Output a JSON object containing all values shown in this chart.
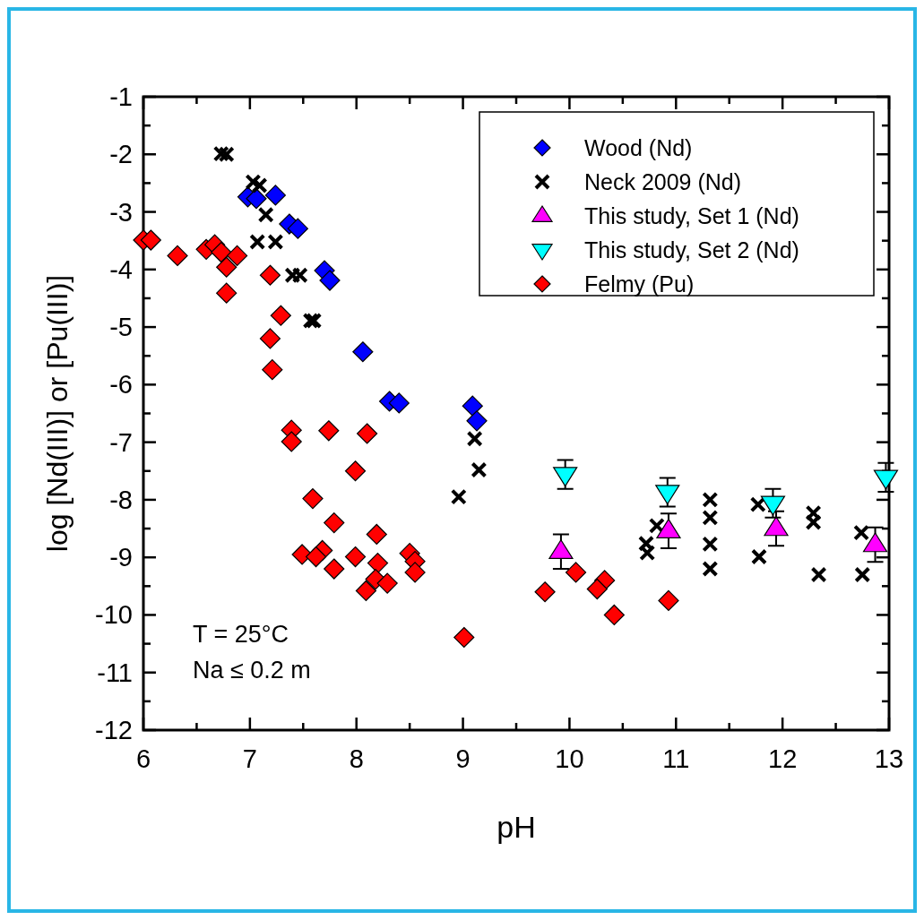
{
  "chart_data": {
    "type": "scatter",
    "xlabel": "pH",
    "ylabel": "log [Nd(III)] or [Pu(III)]",
    "xlim": [
      6,
      13
    ],
    "ylim": [
      -12,
      -1
    ],
    "xticks": [
      6,
      {
        "value": 6.5,
        "label": null
      },
      7,
      {
        "value": 7.5,
        "label": null
      },
      8,
      {
        "value": 8.5,
        "label": null
      },
      9,
      {
        "value": 9.5,
        "label": null
      },
      10,
      {
        "value": 10.5,
        "label": null
      },
      11,
      {
        "value": 11.5,
        "label": null
      },
      12,
      {
        "value": 12.5,
        "label": null
      },
      13
    ],
    "yticks": [
      -12,
      {
        "value": -11.5,
        "label": null
      },
      -11,
      {
        "value": -10.5,
        "label": null
      },
      -10,
      {
        "value": -9.5,
        "label": null
      },
      -9,
      {
        "value": -8.5,
        "label": null
      },
      -8,
      {
        "value": -7.5,
        "label": null
      },
      -7,
      {
        "value": -6.5,
        "label": null
      },
      -6,
      {
        "value": -5.5,
        "label": null
      },
      -5,
      {
        "value": -4.5,
        "label": null
      },
      -4,
      {
        "value": -3.5,
        "label": null
      },
      -3,
      {
        "value": -2.5,
        "label": null
      },
      -2,
      {
        "value": -1.5,
        "label": null
      },
      -1
    ],
    "grid": false,
    "legend": "top right",
    "annotations": [
      "T = 25°C",
      "Na ≤ 0.2 m"
    ],
    "series": [
      {
        "name": "Wood (Nd)",
        "color": "#0000ff",
        "marker": "diamond",
        "x": [
          6.98,
          7.06,
          7.24,
          7.37,
          7.45,
          7.7,
          7.75,
          8.06,
          8.31,
          8.4,
          9.09,
          9.13
        ],
        "values": [
          -2.74,
          -2.77,
          -2.71,
          -3.21,
          -3.29,
          -4.02,
          -4.19,
          -5.43,
          -6.29,
          -6.32,
          -6.37,
          -6.63
        ]
      },
      {
        "name": "Neck 2009 (Nd)",
        "color": "#000000",
        "marker": "cross",
        "x": [
          6.73,
          6.78,
          7.03,
          7.09,
          7.15,
          7.07,
          7.24,
          7.4,
          7.47,
          7.57,
          7.6,
          9.11,
          9.15,
          8.96,
          10.73,
          10.72,
          10.82,
          11.32,
          11.32,
          11.32,
          11.32,
          11.77,
          11.78,
          12.29,
          12.29,
          12.34,
          12.74,
          12.75
        ],
        "values": [
          -1.99,
          -2.0,
          -2.48,
          -2.54,
          -3.05,
          -3.52,
          -3.52,
          -4.1,
          -4.1,
          -4.89,
          -4.89,
          -6.94,
          -7.48,
          -7.95,
          -8.92,
          -8.76,
          -8.45,
          -8.0,
          -8.31,
          -8.77,
          -9.2,
          -8.08,
          -8.99,
          -8.23,
          -8.39,
          -9.3,
          -8.57,
          -9.3
        ]
      },
      {
        "name": "This study, Set 1 (Nd)",
        "color": "#ff00ff",
        "marker": "triangle",
        "x": [
          9.92,
          10.93,
          11.94,
          12.87
        ],
        "values": [
          -8.9,
          -8.54,
          -8.5,
          -8.78
        ],
        "errors": [
          0.3,
          0.3,
          0.3,
          0.3
        ]
      },
      {
        "name": "This study, Set 2 (Nd)",
        "color": "#00ffff",
        "marker": "triangle-down",
        "x": [
          9.96,
          10.92,
          11.91,
          12.97
        ],
        "values": [
          -7.56,
          -7.87,
          -8.06,
          -7.61
        ],
        "errors": [
          0.25,
          0.25,
          0.25,
          0.25
        ]
      },
      {
        "name": "Felmy (Pu)",
        "color": "#ff0000",
        "marker": "diamond",
        "x": [
          6.0,
          6.07,
          6.32,
          6.59,
          6.67,
          6.73,
          6.88,
          6.78,
          6.78,
          7.19,
          7.29,
          7.19,
          7.21,
          7.39,
          7.39,
          7.74,
          8.1,
          7.99,
          7.59,
          7.79,
          8.19,
          7.49,
          7.68,
          7.62,
          7.79,
          7.99,
          8.2,
          8.18,
          8.29,
          8.09,
          8.5,
          8.55,
          8.55,
          9.01,
          9.77,
          10.06,
          10.33,
          10.26,
          10.42,
          10.93
        ],
        "values": [
          -3.49,
          -3.49,
          -3.76,
          -3.65,
          -3.57,
          -3.7,
          -3.76,
          -3.96,
          -4.41,
          -4.1,
          -4.8,
          -5.2,
          -5.74,
          -6.79,
          -6.99,
          -6.8,
          -6.85,
          -7.5,
          -7.98,
          -8.4,
          -8.6,
          -8.95,
          -8.88,
          -8.99,
          -9.2,
          -8.99,
          -9.1,
          -9.38,
          -9.45,
          -9.58,
          -8.93,
          -9.07,
          -9.26,
          -10.39,
          -9.6,
          -9.26,
          -9.4,
          -9.55,
          -10.0,
          -9.75
        ]
      }
    ]
  }
}
